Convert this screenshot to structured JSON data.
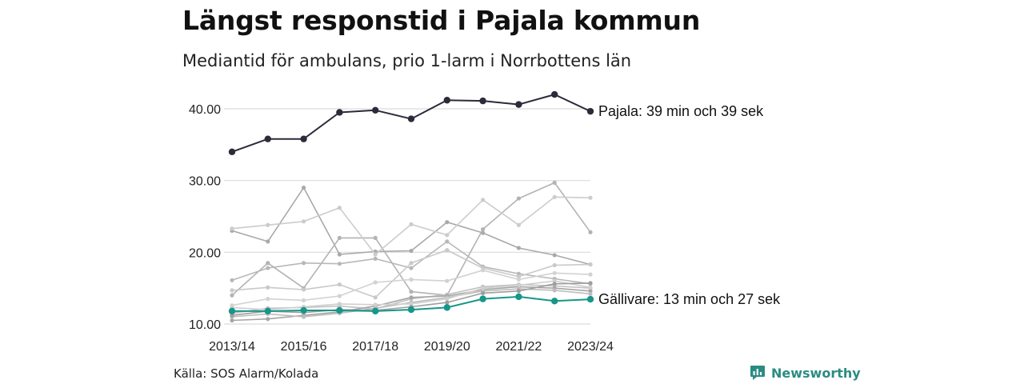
{
  "title": "Längst responstid i Pajala kommun",
  "subtitle": "Mediantid för ambulans, prio 1-larm i Norrbottens län",
  "source": "Källa: SOS Alarm/Kolada",
  "brand": {
    "name": "Newsworthy",
    "color": "#2b8c82",
    "icon": "bar-chart-icon"
  },
  "chart_data": {
    "type": "line",
    "x": [
      "2013/14",
      "2014/15",
      "2015/16",
      "2016/17",
      "2017/18",
      "2018/19",
      "2019/20",
      "2020/21",
      "2021/22",
      "2022/23",
      "2023/24"
    ],
    "x_tick_labels": [
      "2013/14",
      "2015/16",
      "2017/18",
      "2019/20",
      "2021/22",
      "2023/24"
    ],
    "y_ticks": [
      "10.00",
      "20.00",
      "30.00",
      "40.00"
    ],
    "ylim": [
      10,
      42.5
    ],
    "grid": "horizontal",
    "legend": "none",
    "series": [
      {
        "name": "Pajala",
        "color": "#2b2b3a",
        "markers": true,
        "end_label": "Pajala: 39 min och 39 sek",
        "values": [
          34.0,
          35.8,
          35.8,
          39.5,
          39.8,
          38.6,
          41.2,
          41.1,
          40.6,
          42.0,
          39.65
        ]
      },
      {
        "name": "Gällivare",
        "color": "#17968a",
        "markers": true,
        "end_label": "Gällivare: 13 min och 27 sek",
        "values": [
          11.8,
          11.8,
          11.9,
          11.9,
          11.8,
          12.0,
          12.3,
          13.5,
          13.8,
          13.2,
          13.45
        ]
      },
      {
        "color": "#a9a9a9",
        "values": [
          23.0,
          21.5,
          29.0,
          19.7,
          20.1,
          20.2,
          24.2,
          22.7,
          20.6,
          19.6,
          18.3
        ]
      },
      {
        "color": "#b3b3b3",
        "values": [
          14.0,
          18.5,
          15.0,
          22.0,
          22.0,
          14.5,
          14.0,
          23.2,
          27.5,
          29.7,
          22.8
        ]
      },
      {
        "color": "#cccccc",
        "values": [
          23.3,
          23.8,
          24.3,
          26.2,
          19.7,
          23.9,
          22.4,
          27.3,
          23.8,
          27.7,
          27.6
        ]
      },
      {
        "color": "#b8b8b8",
        "values": [
          16.1,
          17.8,
          18.5,
          18.4,
          19.1,
          17.8,
          21.5,
          18.0,
          17.0,
          16.3,
          15.6
        ]
      },
      {
        "color": "#c9c9c9",
        "values": [
          14.7,
          15.1,
          14.8,
          15.5,
          13.7,
          18.5,
          20.3,
          17.8,
          16.6,
          18.2,
          18.3
        ]
      },
      {
        "color": "#d2d2d2",
        "values": [
          12.6,
          13.5,
          13.3,
          13.9,
          15.8,
          16.2,
          16.0,
          17.5,
          16.2,
          17.1,
          16.9
        ]
      },
      {
        "color": "#c2c2c2",
        "values": [
          11.5,
          12.2,
          12.3,
          12.5,
          12.1,
          13.5,
          14.1,
          15.2,
          15.5,
          15.3,
          15.0
        ]
      },
      {
        "color": "#a6a6a6",
        "values": [
          10.5,
          10.7,
          11.2,
          11.7,
          12.5,
          13.7,
          13.9,
          14.8,
          15.2,
          15.0,
          14.6
        ]
      },
      {
        "color": "#bdbdbd",
        "values": [
          11.0,
          11.4,
          11.0,
          11.5,
          12.2,
          13.0,
          13.7,
          14.6,
          14.9,
          14.7,
          14.2
        ]
      },
      {
        "color": "#d0d0d0",
        "values": [
          12.3,
          12.0,
          12.4,
          12.8,
          12.7,
          12.8,
          13.5,
          15.0,
          15.4,
          16.0,
          15.1
        ]
      },
      {
        "color": "#9e9e9e",
        "values": [
          11.2,
          11.8,
          11.6,
          12.0,
          11.9,
          12.4,
          13.0,
          14.3,
          14.6,
          15.6,
          15.7
        ]
      }
    ]
  }
}
